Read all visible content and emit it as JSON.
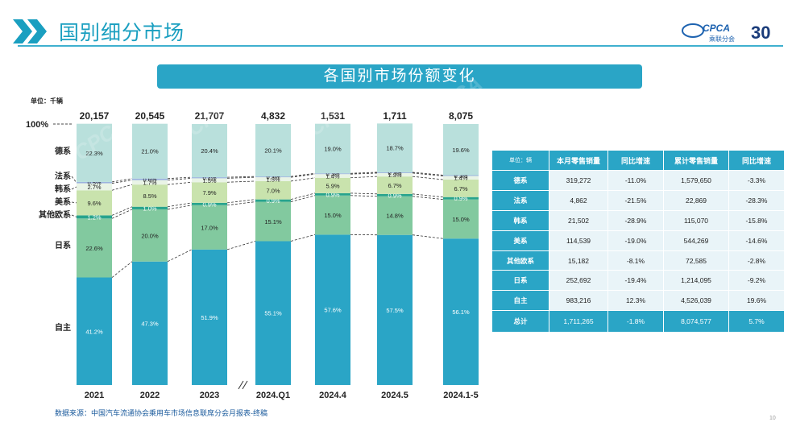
{
  "header": {
    "title": "国别细分市场",
    "logo_text": "CPCA",
    "logo_sub": "乘联分会",
    "logo_anniv": "30"
  },
  "banner": {
    "title": "各国别市场份额变化"
  },
  "source": "数据来源：中国汽车流通协会乘用车市场信息联席分会月报表-终稿",
  "page_number": "10",
  "chart_data": {
    "type": "bar",
    "stacked": true,
    "normalized": true,
    "unit_label": "单位：千辆",
    "top_axis_label": "100%",
    "categories": [
      "2021",
      "2022",
      "2023",
      "2024.Q1",
      "2024.4",
      "2024.5",
      "2024.1-5"
    ],
    "totals": [
      "20,157",
      "20,545",
      "21,707",
      "4,832",
      "1,531",
      "1,711",
      "8,075"
    ],
    "series": [
      {
        "name": "自主",
        "color": "#2aa5c6",
        "values": [
          41.2,
          47.3,
          51.9,
          55.1,
          57.6,
          57.5,
          56.1
        ]
      },
      {
        "name": "日系",
        "color": "#82c99f",
        "values": [
          22.6,
          20.0,
          17.0,
          15.1,
          15.0,
          14.8,
          15.0
        ]
      },
      {
        "name": "其他欧系",
        "color": "#27a38d",
        "values": [
          1.2,
          1.0,
          0.9,
          0.9,
          0.9,
          0.9,
          0.9
        ]
      },
      {
        "name": "美系",
        "color": "#c9e3ad",
        "values": [
          9.6,
          8.5,
          7.9,
          7.0,
          5.9,
          6.7,
          6.7
        ]
      },
      {
        "name": "韩系",
        "color": "#e9f4e6",
        "values": [
          2.7,
          1.7,
          1.5,
          1.5,
          1.4,
          1.3,
          1.4
        ]
      },
      {
        "name": "法系",
        "color": "#9bb3de",
        "values": [
          0.5,
          0.6,
          0.4,
          0.3,
          0.3,
          0.3,
          0.3
        ]
      },
      {
        "name": "德系",
        "color": "#b9e0dc",
        "values": [
          22.3,
          21.0,
          20.4,
          20.1,
          19.0,
          18.7,
          19.6
        ]
      }
    ]
  },
  "table": {
    "headers": [
      "单位：辆",
      "本月零售销量",
      "同比增速",
      "累计零售销量",
      "同比增速"
    ],
    "rows": [
      {
        "name": "德系",
        "cells": [
          "319,272",
          "-11.0%",
          "1,579,650",
          "-3.3%"
        ]
      },
      {
        "name": "法系",
        "cells": [
          "4,862",
          "-21.5%",
          "22,869",
          "-28.3%"
        ]
      },
      {
        "name": "韩系",
        "cells": [
          "21,502",
          "-28.9%",
          "115,070",
          "-15.8%"
        ]
      },
      {
        "name": "美系",
        "cells": [
          "114,539",
          "-19.0%",
          "544,269",
          "-14.6%"
        ]
      },
      {
        "name": "其他欧系",
        "cells": [
          "15,182",
          "-8.1%",
          "72,585",
          "-2.8%"
        ]
      },
      {
        "name": "日系",
        "cells": [
          "252,692",
          "-19.4%",
          "1,214,095",
          "-9.2%"
        ]
      },
      {
        "name": "自主",
        "cells": [
          "983,216",
          "12.3%",
          "4,526,039",
          "19.6%"
        ]
      }
    ],
    "total": {
      "name": "总计",
      "cells": [
        "1,711,265",
        "-1.8%",
        "8,074,577",
        "5.7%"
      ]
    }
  }
}
